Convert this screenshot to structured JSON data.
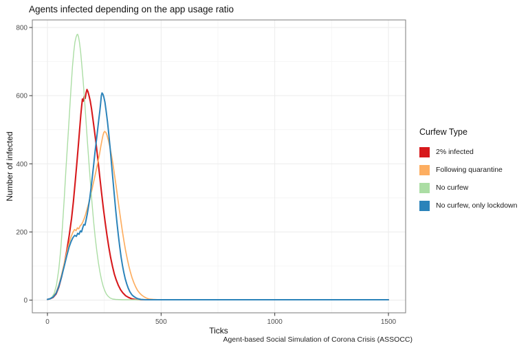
{
  "chart_data": {
    "type": "line",
    "title": "Agents infected depending on the app usage ratio",
    "xlabel": "Ticks",
    "ylabel": "Number of infected",
    "caption": "Agent-based Social Simulation of Corona Crisis (ASSOCC)",
    "xlim": [
      0,
      1500
    ],
    "ylim": [
      0,
      800
    ],
    "x_ticks": [
      0,
      500,
      1000,
      1500
    ],
    "x_minor_ticks": [
      250,
      750,
      1250
    ],
    "y_ticks": [
      0,
      200,
      400,
      600,
      800
    ],
    "y_minor_ticks": [
      100,
      300,
      500,
      700
    ],
    "grid": true,
    "legend_title": "Curfew Type",
    "legend_position": "right",
    "colors": {
      "grid_major": "#ebebeb",
      "grid_minor": "#f4f4f4",
      "panel_border": "#858585",
      "tick_mark": "#333333",
      "tick_label": "#4d4d4d"
    },
    "series": [
      {
        "name": "2% infected",
        "color": "#d7191c",
        "stroke_width": 2.1,
        "points": [
          [
            0,
            2
          ],
          [
            12,
            4
          ],
          [
            25,
            8
          ],
          [
            38,
            18
          ],
          [
            50,
            38
          ],
          [
            62,
            68
          ],
          [
            74,
            105
          ],
          [
            86,
            148
          ],
          [
            96,
            190
          ],
          [
            106,
            240
          ],
          [
            114,
            288
          ],
          [
            122,
            345
          ],
          [
            129,
            400
          ],
          [
            136,
            455
          ],
          [
            142,
            505
          ],
          [
            147,
            545
          ],
          [
            151,
            572
          ],
          [
            154,
            590
          ],
          [
            158,
            584
          ],
          [
            162,
            598
          ],
          [
            166,
            592
          ],
          [
            170,
            608
          ],
          [
            174,
            618
          ],
          [
            178,
            612
          ],
          [
            183,
            600
          ],
          [
            188,
            585
          ],
          [
            194,
            562
          ],
          [
            200,
            532
          ],
          [
            207,
            497
          ],
          [
            214,
            458
          ],
          [
            222,
            412
          ],
          [
            230,
            362
          ],
          [
            238,
            315
          ],
          [
            246,
            270
          ],
          [
            254,
            228
          ],
          [
            262,
            190
          ],
          [
            270,
            155
          ],
          [
            278,
            125
          ],
          [
            286,
            99
          ],
          [
            294,
            77
          ],
          [
            302,
            60
          ],
          [
            312,
            43
          ],
          [
            322,
            30
          ],
          [
            332,
            21
          ],
          [
            344,
            13
          ],
          [
            356,
            8
          ],
          [
            370,
            4
          ],
          [
            386,
            2
          ],
          [
            410,
            1
          ],
          [
            470,
            1
          ],
          [
            700,
            1
          ],
          [
            1100,
            1
          ],
          [
            1500,
            1
          ]
        ]
      },
      {
        "name": "Following quarantine",
        "color": "#fdae61",
        "stroke_width": 1.7,
        "points": [
          [
            0,
            2
          ],
          [
            12,
            4
          ],
          [
            25,
            10
          ],
          [
            38,
            22
          ],
          [
            50,
            44
          ],
          [
            62,
            74
          ],
          [
            74,
            108
          ],
          [
            85,
            140
          ],
          [
            95,
            166
          ],
          [
            104,
            186
          ],
          [
            112,
            199
          ],
          [
            119,
            207
          ],
          [
            126,
            204
          ],
          [
            132,
            212
          ],
          [
            138,
            209
          ],
          [
            144,
            218
          ],
          [
            150,
            222
          ],
          [
            156,
            230
          ],
          [
            162,
            240
          ],
          [
            168,
            252
          ],
          [
            174,
            266
          ],
          [
            181,
            283
          ],
          [
            188,
            302
          ],
          [
            195,
            322
          ],
          [
            202,
            343
          ],
          [
            209,
            364
          ],
          [
            216,
            386
          ],
          [
            223,
            408
          ],
          [
            229,
            428
          ],
          [
            235,
            452
          ],
          [
            240,
            470
          ],
          [
            244,
            483
          ],
          [
            248,
            492
          ],
          [
            252,
            495
          ],
          [
            257,
            492
          ],
          [
            262,
            484
          ],
          [
            268,
            470
          ],
          [
            274,
            452
          ],
          [
            281,
            428
          ],
          [
            288,
            400
          ],
          [
            295,
            368
          ],
          [
            302,
            335
          ],
          [
            309,
            300
          ],
          [
            316,
            266
          ],
          [
            323,
            233
          ],
          [
            330,
            201
          ],
          [
            337,
            172
          ],
          [
            344,
            145
          ],
          [
            351,
            121
          ],
          [
            358,
            100
          ],
          [
            365,
            82
          ],
          [
            372,
            66
          ],
          [
            380,
            51
          ],
          [
            388,
            39
          ],
          [
            396,
            29
          ],
          [
            405,
            21
          ],
          [
            414,
            15
          ],
          [
            424,
            10
          ],
          [
            435,
            6
          ],
          [
            448,
            3
          ],
          [
            465,
            2
          ],
          [
            490,
            1
          ],
          [
            700,
            1
          ],
          [
            1100,
            1
          ],
          [
            1500,
            1
          ]
        ]
      },
      {
        "name": "No curfew",
        "color": "#abdda4",
        "stroke_width": 1.4,
        "points": [
          [
            0,
            2
          ],
          [
            10,
            4
          ],
          [
            20,
            9
          ],
          [
            30,
            20
          ],
          [
            40,
            45
          ],
          [
            50,
            90
          ],
          [
            58,
            145
          ],
          [
            66,
            215
          ],
          [
            74,
            300
          ],
          [
            82,
            390
          ],
          [
            90,
            475
          ],
          [
            97,
            550
          ],
          [
            104,
            625
          ],
          [
            110,
            685
          ],
          [
            116,
            730
          ],
          [
            121,
            757
          ],
          [
            126,
            772
          ],
          [
            130,
            779
          ],
          [
            133,
            780
          ],
          [
            137,
            772
          ],
          [
            141,
            756
          ],
          [
            146,
            728
          ],
          [
            151,
            692
          ],
          [
            157,
            645
          ],
          [
            163,
            590
          ],
          [
            169,
            532
          ],
          [
            175,
            472
          ],
          [
            182,
            408
          ],
          [
            189,
            345
          ],
          [
            196,
            286
          ],
          [
            203,
            232
          ],
          [
            210,
            185
          ],
          [
            217,
            144
          ],
          [
            224,
            110
          ],
          [
            231,
            82
          ],
          [
            238,
            59
          ],
          [
            245,
            41
          ],
          [
            252,
            28
          ],
          [
            259,
            18
          ],
          [
            267,
            11
          ],
          [
            276,
            6
          ],
          [
            287,
            3
          ],
          [
            300,
            2
          ],
          [
            330,
            1
          ],
          [
            420,
            1
          ],
          [
            700,
            1
          ],
          [
            1100,
            1
          ],
          [
            1500,
            1
          ]
        ]
      },
      {
        "name": "No curfew, only lockdown",
        "color": "#2b83ba",
        "stroke_width": 2.0,
        "points": [
          [
            0,
            2
          ],
          [
            12,
            4
          ],
          [
            25,
            9
          ],
          [
            38,
            20
          ],
          [
            50,
            40
          ],
          [
            62,
            68
          ],
          [
            74,
            100
          ],
          [
            85,
            130
          ],
          [
            95,
            155
          ],
          [
            104,
            172
          ],
          [
            112,
            183
          ],
          [
            120,
            190
          ],
          [
            127,
            187
          ],
          [
            133,
            196
          ],
          [
            139,
            193
          ],
          [
            145,
            203
          ],
          [
            150,
            200
          ],
          [
            155,
            212
          ],
          [
            160,
            222
          ],
          [
            165,
            220
          ],
          [
            170,
            235
          ],
          [
            175,
            252
          ],
          [
            180,
            272
          ],
          [
            186,
            298
          ],
          [
            192,
            330
          ],
          [
            198,
            365
          ],
          [
            204,
            402
          ],
          [
            210,
            438
          ],
          [
            216,
            472
          ],
          [
            221,
            502
          ],
          [
            226,
            530
          ],
          [
            230,
            553
          ],
          [
            234,
            578
          ],
          [
            237,
            600
          ],
          [
            240,
            608
          ],
          [
            244,
            604
          ],
          [
            248,
            596
          ],
          [
            253,
            580
          ],
          [
            258,
            556
          ],
          [
            264,
            524
          ],
          [
            270,
            486
          ],
          [
            276,
            444
          ],
          [
            282,
            400
          ],
          [
            288,
            355
          ],
          [
            294,
            310
          ],
          [
            300,
            266
          ],
          [
            306,
            226
          ],
          [
            312,
            189
          ],
          [
            318,
            156
          ],
          [
            324,
            127
          ],
          [
            330,
            102
          ],
          [
            336,
            81
          ],
          [
            342,
            63
          ],
          [
            349,
            47
          ],
          [
            356,
            34
          ],
          [
            363,
            24
          ],
          [
            371,
            16
          ],
          [
            379,
            11
          ],
          [
            388,
            7
          ],
          [
            398,
            4
          ],
          [
            411,
            2
          ],
          [
            432,
            1
          ],
          [
            480,
            1
          ],
          [
            700,
            1
          ],
          [
            1100,
            1
          ],
          [
            1500,
            1
          ]
        ]
      }
    ]
  }
}
